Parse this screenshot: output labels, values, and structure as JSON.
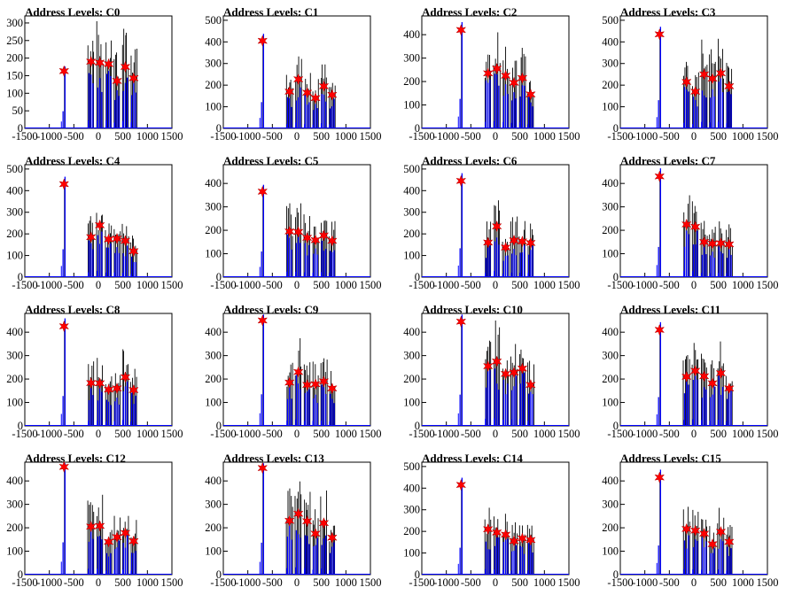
{
  "chart_data": [
    {
      "type": "bar",
      "title": "Address Levels: C0",
      "xlim": [
        -1500,
        1500
      ],
      "ylim": [
        0,
        320
      ],
      "xticks": [
        "-1500",
        "-1000",
        "-500",
        "0",
        "500",
        "1000",
        "1500"
      ],
      "yticks": [
        "0",
        "50",
        "100",
        "150",
        "200",
        "250",
        "300"
      ],
      "peaks": [
        {
          "x": -700,
          "y": 163
        },
        {
          "x": -150,
          "y": 190
        },
        {
          "x": 30,
          "y": 187
        },
        {
          "x": 210,
          "y": 183
        },
        {
          "x": 380,
          "y": 135
        },
        {
          "x": 550,
          "y": 175
        },
        {
          "x": 720,
          "y": 143
        }
      ]
    },
    {
      "type": "bar",
      "title": "Address Levels: C1",
      "xlim": [
        -1500,
        1500
      ],
      "ylim": [
        0,
        520
      ],
      "xticks": [
        "-1500",
        "-1000",
        "-500",
        "0",
        "500",
        "1000",
        "1500"
      ],
      "yticks": [
        "0",
        "100",
        "200",
        "300",
        "400",
        "500"
      ],
      "peaks": [
        {
          "x": -700,
          "y": 405
        },
        {
          "x": -150,
          "y": 170
        },
        {
          "x": 30,
          "y": 227
        },
        {
          "x": 210,
          "y": 165
        },
        {
          "x": 380,
          "y": 140
        },
        {
          "x": 550,
          "y": 195
        },
        {
          "x": 720,
          "y": 155
        }
      ]
    },
    {
      "type": "bar",
      "title": "Address Levels: C2",
      "xlim": [
        -1500,
        1500
      ],
      "ylim": [
        0,
        480
      ],
      "xticks": [
        "-1500",
        "-1000",
        "-500",
        "0",
        "500",
        "1000",
        "1500"
      ],
      "yticks": [
        "0",
        "100",
        "200",
        "300",
        "400"
      ],
      "peaks": [
        {
          "x": -700,
          "y": 420
        },
        {
          "x": -150,
          "y": 235
        },
        {
          "x": 30,
          "y": 255
        },
        {
          "x": 210,
          "y": 225
        },
        {
          "x": 380,
          "y": 195
        },
        {
          "x": 550,
          "y": 215
        },
        {
          "x": 720,
          "y": 145
        }
      ]
    },
    {
      "type": "bar",
      "title": "Address Levels: C3",
      "xlim": [
        -1500,
        1500
      ],
      "ylim": [
        0,
        520
      ],
      "xticks": [
        "-1500",
        "-1000",
        "-500",
        "0",
        "500",
        "1000",
        "1500"
      ],
      "yticks": [
        "0",
        "100",
        "200",
        "300",
        "400",
        "500"
      ],
      "peaks": [
        {
          "x": -700,
          "y": 435
        },
        {
          "x": -150,
          "y": 215
        },
        {
          "x": 30,
          "y": 170
        },
        {
          "x": 210,
          "y": 250
        },
        {
          "x": 380,
          "y": 230
        },
        {
          "x": 550,
          "y": 255
        },
        {
          "x": 720,
          "y": 195
        }
      ]
    },
    {
      "type": "bar",
      "title": "Address Levels: C4",
      "xlim": [
        -1500,
        1500
      ],
      "ylim": [
        0,
        520
      ],
      "xticks": [
        "-1500",
        "-1000",
        "-500",
        "0",
        "500",
        "1000",
        "1500"
      ],
      "yticks": [
        "0",
        "100",
        "200",
        "300",
        "400",
        "500"
      ],
      "peaks": [
        {
          "x": -700,
          "y": 430
        },
        {
          "x": -150,
          "y": 185
        },
        {
          "x": 30,
          "y": 240
        },
        {
          "x": 210,
          "y": 175
        },
        {
          "x": 380,
          "y": 178
        },
        {
          "x": 550,
          "y": 168
        },
        {
          "x": 720,
          "y": 120
        }
      ]
    },
    {
      "type": "bar",
      "title": "Address Levels: C5",
      "xlim": [
        -1500,
        1500
      ],
      "ylim": [
        0,
        480
      ],
      "xticks": [
        "-1500",
        "-1000",
        "-500",
        "0",
        "500",
        "1000",
        "1500"
      ],
      "yticks": [
        "0",
        "100",
        "200",
        "300",
        "400"
      ],
      "peaks": [
        {
          "x": -700,
          "y": 365
        },
        {
          "x": -150,
          "y": 195
        },
        {
          "x": 30,
          "y": 193
        },
        {
          "x": 210,
          "y": 168
        },
        {
          "x": 380,
          "y": 158
        },
        {
          "x": 550,
          "y": 178
        },
        {
          "x": 720,
          "y": 155
        }
      ]
    },
    {
      "type": "bar",
      "title": "Address Levels: C6",
      "xlim": [
        -1500,
        1500
      ],
      "ylim": [
        0,
        520
      ],
      "xticks": [
        "-1500",
        "-1000",
        "-500",
        "0",
        "500",
        "1000",
        "1500"
      ],
      "yticks": [
        "0",
        "100",
        "200",
        "300",
        "400",
        "500"
      ],
      "peaks": [
        {
          "x": -700,
          "y": 445
        },
        {
          "x": -150,
          "y": 160
        },
        {
          "x": 30,
          "y": 235
        },
        {
          "x": 210,
          "y": 137
        },
        {
          "x": 380,
          "y": 170
        },
        {
          "x": 550,
          "y": 165
        },
        {
          "x": 720,
          "y": 158
        }
      ]
    },
    {
      "type": "bar",
      "title": "Address Levels: C7",
      "xlim": [
        -1500,
        1500
      ],
      "ylim": [
        0,
        480
      ],
      "xticks": [
        "-1500",
        "-1000",
        "-500",
        "0",
        "500",
        "1000",
        "1500"
      ],
      "yticks": [
        "0",
        "100",
        "200",
        "300",
        "400"
      ],
      "peaks": [
        {
          "x": -700,
          "y": 430
        },
        {
          "x": -150,
          "y": 225
        },
        {
          "x": 30,
          "y": 215
        },
        {
          "x": 210,
          "y": 150
        },
        {
          "x": 380,
          "y": 143
        },
        {
          "x": 550,
          "y": 145
        },
        {
          "x": 720,
          "y": 140
        }
      ]
    },
    {
      "type": "bar",
      "title": "Address Levels: C8",
      "xlim": [
        -1500,
        1500
      ],
      "ylim": [
        0,
        480
      ],
      "xticks": [
        "-1500",
        "-1000",
        "-500",
        "0",
        "500",
        "1000",
        "1500"
      ],
      "yticks": [
        "0",
        "100",
        "200",
        "300",
        "400"
      ],
      "peaks": [
        {
          "x": -700,
          "y": 425
        },
        {
          "x": -150,
          "y": 183
        },
        {
          "x": 30,
          "y": 182
        },
        {
          "x": 210,
          "y": 155
        },
        {
          "x": 380,
          "y": 160
        },
        {
          "x": 550,
          "y": 208
        },
        {
          "x": 720,
          "y": 153
        }
      ]
    },
    {
      "type": "bar",
      "title": "Address Levels: C9",
      "xlim": [
        -1500,
        1500
      ],
      "ylim": [
        0,
        480
      ],
      "xticks": [
        "-1500",
        "-1000",
        "-500",
        "0",
        "500",
        "1000",
        "1500"
      ],
      "yticks": [
        "0",
        "100",
        "200",
        "300",
        "400"
      ],
      "peaks": [
        {
          "x": -700,
          "y": 450
        },
        {
          "x": -150,
          "y": 185
        },
        {
          "x": 30,
          "y": 230
        },
        {
          "x": 210,
          "y": 175
        },
        {
          "x": 380,
          "y": 178
        },
        {
          "x": 550,
          "y": 190
        },
        {
          "x": 720,
          "y": 160
        }
      ]
    },
    {
      "type": "bar",
      "title": "Address Levels: C10",
      "xlim": [
        -1500,
        1500
      ],
      "ylim": [
        0,
        480
      ],
      "xticks": [
        "-1500",
        "-1000",
        "-500",
        "0",
        "500",
        "1000",
        "1500"
      ],
      "yticks": [
        "0",
        "100",
        "200",
        "300",
        "400"
      ],
      "peaks": [
        {
          "x": -700,
          "y": 445
        },
        {
          "x": -150,
          "y": 255
        },
        {
          "x": 30,
          "y": 275
        },
        {
          "x": 210,
          "y": 222
        },
        {
          "x": 380,
          "y": 228
        },
        {
          "x": 550,
          "y": 245
        },
        {
          "x": 720,
          "y": 175
        }
      ]
    },
    {
      "type": "bar",
      "title": "Address Levels: C11",
      "xlim": [
        -1500,
        1500
      ],
      "ylim": [
        0,
        480
      ],
      "xticks": [
        "-1500",
        "-1000",
        "-500",
        "0",
        "500",
        "1000",
        "1500"
      ],
      "yticks": [
        "0",
        "100",
        "200",
        "300",
        "400"
      ],
      "peaks": [
        {
          "x": -700,
          "y": 410
        },
        {
          "x": -150,
          "y": 210
        },
        {
          "x": 30,
          "y": 235
        },
        {
          "x": 210,
          "y": 212
        },
        {
          "x": 380,
          "y": 182
        },
        {
          "x": 550,
          "y": 225
        },
        {
          "x": 720,
          "y": 160
        }
      ]
    },
    {
      "type": "bar",
      "title": "Address Levels: C12",
      "xlim": [
        -1500,
        1500
      ],
      "ylim": [
        0,
        480
      ],
      "xticks": [
        "-1500",
        "-1000",
        "-500",
        "0",
        "500",
        "1000",
        "1500"
      ],
      "yticks": [
        "0",
        "100",
        "200",
        "300",
        "400"
      ],
      "peaks": [
        {
          "x": -700,
          "y": 460
        },
        {
          "x": -150,
          "y": 205
        },
        {
          "x": 30,
          "y": 208
        },
        {
          "x": 210,
          "y": 140
        },
        {
          "x": 380,
          "y": 160
        },
        {
          "x": 550,
          "y": 178
        },
        {
          "x": 720,
          "y": 143
        }
      ]
    },
    {
      "type": "bar",
      "title": "Address Levels: C13",
      "xlim": [
        -1500,
        1500
      ],
      "ylim": [
        0,
        480
      ],
      "xticks": [
        "-1500",
        "-1000",
        "-500",
        "0",
        "500",
        "1000",
        "1500"
      ],
      "yticks": [
        "0",
        "100",
        "200",
        "300",
        "400"
      ],
      "peaks": [
        {
          "x": -700,
          "y": 455
        },
        {
          "x": -150,
          "y": 230
        },
        {
          "x": 30,
          "y": 260
        },
        {
          "x": 210,
          "y": 228
        },
        {
          "x": 380,
          "y": 175
        },
        {
          "x": 550,
          "y": 220
        },
        {
          "x": 720,
          "y": 158
        }
      ]
    },
    {
      "type": "bar",
      "title": "Address Levels: C14",
      "xlim": [
        -1500,
        1500
      ],
      "ylim": [
        0,
        520
      ],
      "xticks": [
        "-1500",
        "-1000",
        "-500",
        "0",
        "500",
        "1000",
        "1500"
      ],
      "yticks": [
        "0",
        "100",
        "200",
        "300",
        "400",
        "500"
      ],
      "peaks": [
        {
          "x": -700,
          "y": 415
        },
        {
          "x": -150,
          "y": 210
        },
        {
          "x": 30,
          "y": 195
        },
        {
          "x": 210,
          "y": 185
        },
        {
          "x": 380,
          "y": 155
        },
        {
          "x": 550,
          "y": 168
        },
        {
          "x": 720,
          "y": 160
        }
      ]
    },
    {
      "type": "bar",
      "title": "Address Levels: C15",
      "xlim": [
        -1500,
        1500
      ],
      "ylim": [
        0,
        480
      ],
      "xticks": [
        "-1500",
        "-1000",
        "-500",
        "0",
        "500",
        "1000",
        "1500"
      ],
      "yticks": [
        "0",
        "100",
        "200",
        "300",
        "400"
      ],
      "peaks": [
        {
          "x": -700,
          "y": 415
        },
        {
          "x": -150,
          "y": 195
        },
        {
          "x": 30,
          "y": 188
        },
        {
          "x": 210,
          "y": 175
        },
        {
          "x": 380,
          "y": 130
        },
        {
          "x": 550,
          "y": 183
        },
        {
          "x": 720,
          "y": 140
        }
      ]
    }
  ],
  "colors": {
    "histogram": "#0000ff",
    "trace": "#000000",
    "marker": "#ff0000",
    "axes": "#000000"
  }
}
